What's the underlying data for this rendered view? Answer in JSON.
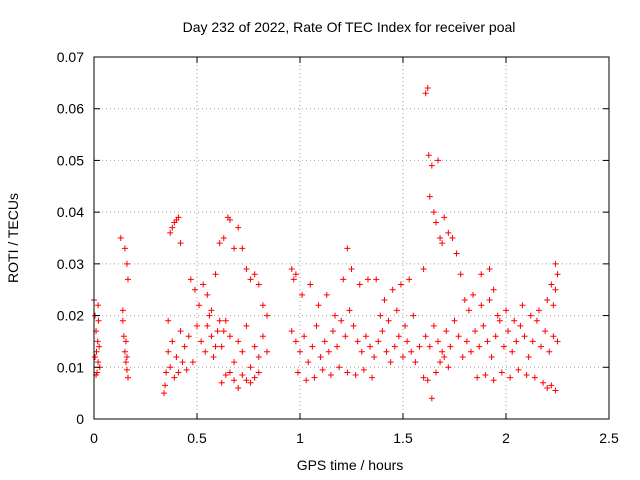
{
  "chart_data": {
    "type": "scatter",
    "title": "Day 232 of 2022, Rate Of TEC Index for receiver poal",
    "xlabel": "GPS time / hours",
    "ylabel": "ROTI / TECUs",
    "xlim": [
      0,
      2.5
    ],
    "ylim": [
      0,
      0.07
    ],
    "xticks": [
      0,
      0.5,
      1,
      1.5,
      2,
      2.5
    ],
    "xtick_labels": [
      "0",
      "0.5",
      "1",
      "1.5",
      "2",
      "2.5"
    ],
    "yticks": [
      0,
      0.01,
      0.02,
      0.03,
      0.04,
      0.05,
      0.06,
      0.07
    ],
    "ytick_labels": [
      "0",
      "0.01",
      "0.02",
      "0.03",
      "0.04",
      "0.05",
      "0.06",
      "0.07"
    ],
    "grid": true,
    "marker": "+",
    "marker_color": "#ff0000",
    "series": [
      {
        "name": "ROTI",
        "points": [
          [
            0.0,
            0.023
          ],
          [
            0.005,
            0.02
          ],
          [
            0.01,
            0.017
          ],
          [
            0.012,
            0.013
          ],
          [
            0.015,
            0.009
          ],
          [
            0.018,
            0.015
          ],
          [
            0.02,
            0.011
          ],
          [
            0.022,
            0.019
          ],
          [
            0.025,
            0.014
          ],
          [
            0.028,
            0.01
          ],
          [
            0.005,
            0.012
          ],
          [
            0.01,
            0.0085
          ],
          [
            0.02,
            0.022
          ],
          [
            0.13,
            0.035
          ],
          [
            0.14,
            0.021
          ],
          [
            0.145,
            0.016
          ],
          [
            0.15,
            0.013
          ],
          [
            0.155,
            0.011
          ],
          [
            0.16,
            0.0095
          ],
          [
            0.165,
            0.008
          ],
          [
            0.15,
            0.033
          ],
          [
            0.16,
            0.03
          ],
          [
            0.165,
            0.027
          ],
          [
            0.14,
            0.019
          ],
          [
            0.155,
            0.015
          ],
          [
            0.16,
            0.012
          ],
          [
            0.34,
            0.005
          ],
          [
            0.345,
            0.0065
          ],
          [
            0.35,
            0.009
          ],
          [
            0.36,
            0.019
          ],
          [
            0.37,
            0.036
          ],
          [
            0.38,
            0.037
          ],
          [
            0.39,
            0.038
          ],
          [
            0.4,
            0.0385
          ],
          [
            0.41,
            0.039
          ],
          [
            0.42,
            0.034
          ],
          [
            0.36,
            0.013
          ],
          [
            0.38,
            0.015
          ],
          [
            0.4,
            0.012
          ],
          [
            0.42,
            0.017
          ],
          [
            0.44,
            0.014
          ],
          [
            0.46,
            0.016
          ],
          [
            0.48,
            0.011
          ],
          [
            0.5,
            0.018
          ],
          [
            0.52,
            0.015
          ],
          [
            0.54,
            0.013
          ],
          [
            0.56,
            0.02
          ],
          [
            0.58,
            0.012
          ],
          [
            0.6,
            0.017
          ],
          [
            0.62,
            0.014
          ],
          [
            0.64,
            0.019
          ],
          [
            0.66,
            0.016
          ],
          [
            0.68,
            0.011
          ],
          [
            0.7,
            0.015
          ],
          [
            0.72,
            0.013
          ],
          [
            0.74,
            0.018
          ],
          [
            0.76,
            0.01
          ],
          [
            0.78,
            0.014
          ],
          [
            0.8,
            0.012
          ],
          [
            0.82,
            0.016
          ],
          [
            0.84,
            0.013
          ],
          [
            0.37,
            0.01
          ],
          [
            0.39,
            0.008
          ],
          [
            0.41,
            0.009
          ],
          [
            0.43,
            0.011
          ],
          [
            0.45,
            0.0095
          ],
          [
            0.47,
            0.027
          ],
          [
            0.49,
            0.025
          ],
          [
            0.51,
            0.022
          ],
          [
            0.53,
            0.026
          ],
          [
            0.55,
            0.024
          ],
          [
            0.57,
            0.021
          ],
          [
            0.59,
            0.028
          ],
          [
            0.61,
            0.034
          ],
          [
            0.63,
            0.035
          ],
          [
            0.65,
            0.039
          ],
          [
            0.66,
            0.0385
          ],
          [
            0.68,
            0.033
          ],
          [
            0.7,
            0.037
          ],
          [
            0.72,
            0.033
          ],
          [
            0.74,
            0.029
          ],
          [
            0.76,
            0.027
          ],
          [
            0.78,
            0.028
          ],
          [
            0.8,
            0.026
          ],
          [
            0.82,
            0.022
          ],
          [
            0.84,
            0.02
          ],
          [
            0.62,
            0.007
          ],
          [
            0.64,
            0.0085
          ],
          [
            0.66,
            0.009
          ],
          [
            0.68,
            0.0075
          ],
          [
            0.7,
            0.006
          ],
          [
            0.72,
            0.0085
          ],
          [
            0.74,
            0.0075
          ],
          [
            0.76,
            0.007
          ],
          [
            0.78,
            0.008
          ],
          [
            0.8,
            0.009
          ],
          [
            0.55,
            0.018
          ],
          [
            0.57,
            0.016
          ],
          [
            0.59,
            0.014
          ],
          [
            0.61,
            0.019
          ],
          [
            0.63,
            0.017
          ],
          [
            0.96,
            0.029
          ],
          [
            0.97,
            0.027
          ],
          [
            0.98,
            0.028
          ],
          [
            0.96,
            0.017
          ],
          [
            0.98,
            0.015
          ],
          [
            1.0,
            0.013
          ],
          [
            1.02,
            0.016
          ],
          [
            1.04,
            0.011
          ],
          [
            1.06,
            0.014
          ],
          [
            1.08,
            0.018
          ],
          [
            1.1,
            0.012
          ],
          [
            1.12,
            0.015
          ],
          [
            1.14,
            0.013
          ],
          [
            1.16,
            0.017
          ],
          [
            1.18,
            0.014
          ],
          [
            1.2,
            0.019
          ],
          [
            1.22,
            0.016
          ],
          [
            1.24,
            0.021
          ],
          [
            1.26,
            0.018
          ],
          [
            1.28,
            0.015
          ],
          [
            1.3,
            0.013
          ],
          [
            1.32,
            0.016
          ],
          [
            1.34,
            0.014
          ],
          [
            1.36,
            0.012
          ],
          [
            1.38,
            0.015
          ],
          [
            1.4,
            0.017
          ],
          [
            1.42,
            0.013
          ],
          [
            1.44,
            0.011
          ],
          [
            1.46,
            0.014
          ],
          [
            1.48,
            0.016
          ],
          [
            1.5,
            0.012
          ],
          [
            1.52,
            0.015
          ],
          [
            1.54,
            0.013
          ],
          [
            1.56,
            0.011
          ],
          [
            1.58,
            0.014
          ],
          [
            0.99,
            0.009
          ],
          [
            1.03,
            0.0075
          ],
          [
            1.07,
            0.008
          ],
          [
            1.11,
            0.0095
          ],
          [
            1.15,
            0.0085
          ],
          [
            1.19,
            0.01
          ],
          [
            1.23,
            0.009
          ],
          [
            1.27,
            0.0085
          ],
          [
            1.31,
            0.0095
          ],
          [
            1.35,
            0.008
          ],
          [
            1.01,
            0.024
          ],
          [
            1.05,
            0.026
          ],
          [
            1.09,
            0.022
          ],
          [
            1.13,
            0.024
          ],
          [
            1.17,
            0.02
          ],
          [
            1.21,
            0.027
          ],
          [
            1.23,
            0.033
          ],
          [
            1.25,
            0.029
          ],
          [
            1.29,
            0.026
          ],
          [
            1.33,
            0.027
          ],
          [
            1.37,
            0.027
          ],
          [
            1.41,
            0.023
          ],
          [
            1.45,
            0.025
          ],
          [
            1.49,
            0.026
          ],
          [
            1.53,
            0.027
          ],
          [
            1.39,
            0.02
          ],
          [
            1.43,
            0.019
          ],
          [
            1.47,
            0.021
          ],
          [
            1.51,
            0.018
          ],
          [
            1.55,
            0.02
          ],
          [
            1.6,
            0.029
          ],
          [
            1.61,
            0.063
          ],
          [
            1.62,
            0.064
          ],
          [
            1.625,
            0.051
          ],
          [
            1.63,
            0.043
          ],
          [
            1.64,
            0.049
          ],
          [
            1.65,
            0.04
          ],
          [
            1.66,
            0.038
          ],
          [
            1.67,
            0.05
          ],
          [
            1.68,
            0.035
          ],
          [
            1.69,
            0.034
          ],
          [
            1.7,
            0.039
          ],
          [
            1.72,
            0.036
          ],
          [
            1.74,
            0.035
          ],
          [
            1.76,
            0.032
          ],
          [
            1.78,
            0.028
          ],
          [
            1.8,
            0.023
          ],
          [
            1.82,
            0.021
          ],
          [
            1.6,
            0.008
          ],
          [
            1.62,
            0.0075
          ],
          [
            1.64,
            0.004
          ],
          [
            1.66,
            0.009
          ],
          [
            1.68,
            0.011
          ],
          [
            1.7,
            0.012
          ],
          [
            1.72,
            0.01
          ],
          [
            1.61,
            0.016
          ],
          [
            1.63,
            0.014
          ],
          [
            1.65,
            0.018
          ],
          [
            1.67,
            0.015
          ],
          [
            1.69,
            0.013
          ],
          [
            1.71,
            0.017
          ],
          [
            1.73,
            0.014
          ],
          [
            1.75,
            0.019
          ],
          [
            1.77,
            0.016
          ],
          [
            1.79,
            0.012
          ],
          [
            1.81,
            0.015
          ],
          [
            1.83,
            0.013
          ],
          [
            1.85,
            0.017
          ],
          [
            1.87,
            0.014
          ],
          [
            1.89,
            0.018
          ],
          [
            1.91,
            0.015
          ],
          [
            1.93,
            0.012
          ],
          [
            1.95,
            0.016
          ],
          [
            1.97,
            0.019
          ],
          [
            1.99,
            0.014
          ],
          [
            2.01,
            0.017
          ],
          [
            2.03,
            0.013
          ],
          [
            2.05,
            0.015
          ],
          [
            2.07,
            0.018
          ],
          [
            2.09,
            0.016
          ],
          [
            2.11,
            0.012
          ],
          [
            2.13,
            0.015
          ],
          [
            2.15,
            0.019
          ],
          [
            2.17,
            0.014
          ],
          [
            2.19,
            0.017
          ],
          [
            2.21,
            0.013
          ],
          [
            2.23,
            0.016
          ],
          [
            2.25,
            0.015
          ],
          [
            1.86,
            0.008
          ],
          [
            1.9,
            0.0085
          ],
          [
            1.94,
            0.0075
          ],
          [
            1.98,
            0.009
          ],
          [
            2.02,
            0.008
          ],
          [
            2.06,
            0.0095
          ],
          [
            2.1,
            0.0085
          ],
          [
            2.14,
            0.008
          ],
          [
            2.18,
            0.007
          ],
          [
            2.2,
            0.006
          ],
          [
            2.22,
            0.0065
          ],
          [
            2.24,
            0.0055
          ],
          [
            1.84,
            0.024
          ],
          [
            1.88,
            0.022
          ],
          [
            1.92,
            0.023
          ],
          [
            1.96,
            0.02
          ],
          [
            2.0,
            0.021
          ],
          [
            2.04,
            0.019
          ],
          [
            2.08,
            0.022
          ],
          [
            2.12,
            0.02
          ],
          [
            2.16,
            0.021
          ],
          [
            2.2,
            0.023
          ],
          [
            2.22,
            0.026
          ],
          [
            2.24,
            0.03
          ],
          [
            2.25,
            0.028
          ],
          [
            1.92,
            0.029
          ],
          [
            1.88,
            0.028
          ],
          [
            1.94,
            0.025
          ],
          [
            2.24,
            0.025
          ],
          [
            2.23,
            0.022
          ]
        ]
      }
    ]
  }
}
